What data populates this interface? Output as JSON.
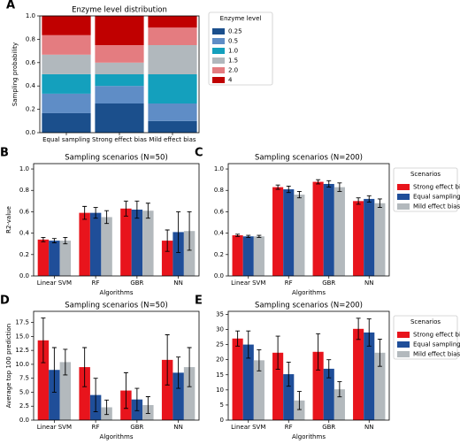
{
  "chart_data": [
    {
      "type": "bar",
      "stacked": true,
      "panel": "A",
      "title": "Enzyme level distribution",
      "ylabel": "Sampling probability",
      "categories": [
        "Equal sampling",
        "Strong effect bias",
        "Mild effect bias"
      ],
      "series": [
        {
          "name": "0.25",
          "color": "#1b4f8c",
          "values": [
            0.167,
            0.25,
            0.1
          ]
        },
        {
          "name": "0.5",
          "color": "#5f8dc6",
          "values": [
            0.167,
            0.15,
            0.15
          ]
        },
        {
          "name": "1.0",
          "color": "#14a0bd",
          "values": [
            0.167,
            0.1,
            0.25
          ]
        },
        {
          "name": "1.5",
          "color": "#b1b8bd",
          "values": [
            0.167,
            0.1,
            0.25
          ]
        },
        {
          "name": "2.0",
          "color": "#e47c80",
          "values": [
            0.167,
            0.15,
            0.15
          ]
        },
        {
          "name": "4",
          "color": "#c00000",
          "values": [
            0.167,
            0.25,
            0.1
          ]
        }
      ],
      "ylim": [
        0,
        1.0
      ],
      "yticks": [
        {
          "value": 0,
          "label": "0.0"
        },
        0.2,
        0.4,
        0.6,
        0.8,
        {
          "value": 1,
          "label": "1.0"
        }
      ],
      "legend": "right",
      "legend_title": "Enzyme level"
    },
    {
      "type": "bar",
      "stacked": false,
      "panel": "B",
      "title": "Sampling scenarios (N=50)",
      "ylabel": "R2-value",
      "xlabel": "Algorithms",
      "categories": [
        "Linear SVM",
        "RF",
        "GBR",
        "NN"
      ],
      "series": [
        {
          "name": "Strong effect bias",
          "color": "#e8141c",
          "values": [
            0.34,
            0.59,
            0.63,
            0.33
          ],
          "errors": [
            0.02,
            0.06,
            0.07,
            0.1
          ]
        },
        {
          "name": "Equal sampling",
          "color": "#1f4e99",
          "values": [
            0.33,
            0.59,
            0.62,
            0.41
          ],
          "errors": [
            0.02,
            0.05,
            0.08,
            0.19
          ]
        },
        {
          "name": "Mild effect bias",
          "color": "#b3b9bd",
          "values": [
            0.33,
            0.55,
            0.61,
            0.42
          ],
          "errors": [
            0.03,
            0.06,
            0.07,
            0.18
          ]
        }
      ],
      "ylim": [
        0,
        1.05
      ],
      "yticks": [
        {
          "value": 0,
          "label": "0.0"
        },
        0.2,
        0.4,
        0.6,
        0.8,
        {
          "value": 1,
          "label": "1.0"
        }
      ]
    },
    {
      "type": "bar",
      "stacked": false,
      "panel": "C",
      "title": "Sampling scenarios (N=200)",
      "xlabel": "Algorithms",
      "categories": [
        "Linear SVM",
        "RF",
        "GBR",
        "NN"
      ],
      "series": [
        {
          "name": "Strong effect bias",
          "color": "#e8141c",
          "values": [
            0.38,
            0.83,
            0.88,
            0.7
          ],
          "errors": [
            0.01,
            0.02,
            0.02,
            0.03
          ]
        },
        {
          "name": "Equal sampling",
          "color": "#1f4e99",
          "values": [
            0.37,
            0.81,
            0.86,
            0.72
          ],
          "errors": [
            0.01,
            0.03,
            0.03,
            0.03
          ]
        },
        {
          "name": "Mild effect bias",
          "color": "#b3b9bd",
          "values": [
            0.37,
            0.76,
            0.83,
            0.68
          ],
          "errors": [
            0.01,
            0.03,
            0.04,
            0.04
          ]
        }
      ],
      "ylim": [
        0,
        1.05
      ],
      "yticks": [
        {
          "value": 0,
          "label": "0.0"
        },
        0.2,
        0.4,
        0.6,
        0.8,
        {
          "value": 1,
          "label": "1.0"
        }
      ],
      "legend": "right",
      "legend_title": "Scenarios"
    },
    {
      "type": "bar",
      "stacked": false,
      "panel": "D",
      "title": "Sampling scenarios (N=50)",
      "ylabel": "Average top 100 prediction",
      "xlabel": "Algorithms",
      "categories": [
        "Linear SVM",
        "RF",
        "GBR",
        "NN"
      ],
      "series": [
        {
          "name": "Strong effect bias",
          "color": "#e8141c",
          "values": [
            14.3,
            9.5,
            5.3,
            10.8
          ],
          "errors": [
            4,
            3.5,
            3.2,
            4.5
          ]
        },
        {
          "name": "Equal sampling",
          "color": "#1f4e99",
          "values": [
            9.0,
            4.5,
            3.7,
            8.5
          ],
          "errors": [
            4,
            3,
            2,
            2.8
          ]
        },
        {
          "name": "Mild effect bias",
          "color": "#b3b9bd",
          "values": [
            10.4,
            2.3,
            2.7,
            9.5
          ],
          "errors": [
            2.3,
            1.3,
            1.5,
            3.5
          ]
        }
      ],
      "ylim": [
        0,
        19.5
      ],
      "yticks": [
        {
          "value": 0,
          "label": "0.0"
        },
        2.5,
        {
          "value": 5,
          "label": "5.0"
        },
        7.5,
        {
          "value": 10,
          "label": "10.0"
        },
        12.5,
        {
          "value": 15,
          "label": "15.0"
        },
        17.5
      ]
    },
    {
      "type": "bar",
      "stacked": false,
      "panel": "E",
      "title": "Sampling scenarios (N=200)",
      "xlabel": "Algorithms",
      "categories": [
        "Linear SVM",
        "RF",
        "GBR",
        "NN"
      ],
      "series": [
        {
          "name": "Strong effect bias",
          "color": "#e8141c",
          "values": [
            27,
            22.3,
            22.6,
            30.2
          ],
          "errors": [
            2.5,
            5.5,
            6,
            3.5
          ]
        },
        {
          "name": "Equal sampling",
          "color": "#1f4e99",
          "values": [
            25,
            15.2,
            17,
            29
          ],
          "errors": [
            4.5,
            4,
            3,
            4.5
          ]
        },
        {
          "name": "Mild effect bias",
          "color": "#b3b9bd",
          "values": [
            19.8,
            6.5,
            10.2,
            22.3
          ],
          "errors": [
            3.5,
            3,
            2.5,
            4.5
          ]
        }
      ],
      "ylim": [
        0,
        36
      ],
      "yticks": [
        0,
        5,
        10,
        15,
        20,
        25,
        30,
        35
      ],
      "legend": "right",
      "legend_title": "Scenarios"
    }
  ]
}
